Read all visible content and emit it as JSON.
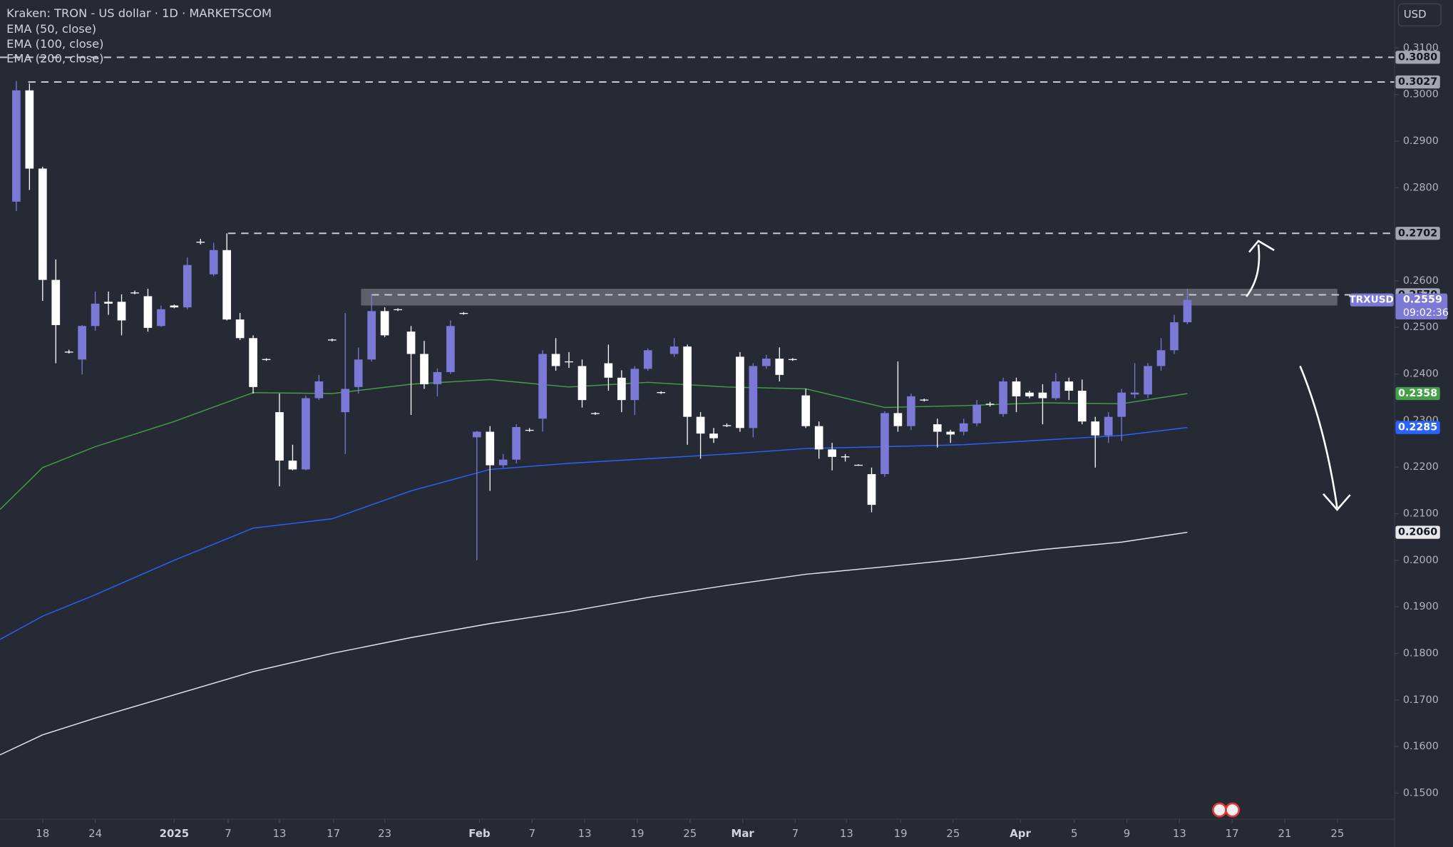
{
  "chart_data": {
    "type": "candlestick",
    "title": "Kraken: TRON - US dollar · 1D · MARKETSCOM",
    "currency": "USD",
    "candles": {
      "name": "TRXUSD",
      "up_color": "#7b78d6",
      "down_color": "#ffffff",
      "open": [
        0.277,
        0.3009,
        0.2841,
        0.2602,
        0.2448,
        0.2431,
        0.2503,
        0.2555,
        0.2555,
        0.2575,
        0.2567,
        0.2503,
        0.2547,
        0.2543,
        0.2684,
        0.2614,
        0.2666,
        0.2517,
        0.2477,
        0.2432,
        0.2318,
        0.2214,
        0.2195,
        0.2348,
        0.2474,
        0.2318,
        0.2372,
        0.2431,
        0.2535,
        0.2539,
        0.2491,
        0.2443,
        0.2378,
        0.2404,
        0.2531,
        0.2264,
        0.2276,
        0.2204,
        0.2216,
        0.228,
        0.2304,
        0.2443,
        0.2427,
        0.2417,
        0.2316,
        0.2423,
        0.2392,
        0.2344,
        0.2411,
        0.2361,
        0.2443,
        0.2459,
        0.2308,
        0.2272,
        0.229,
        0.2437,
        0.2284,
        0.2417,
        0.2433,
        0.2432,
        0.2354,
        0.2288,
        0.2238,
        0.2223,
        0.2205,
        0.2185,
        0.2185,
        0.2316,
        0.2288,
        0.2345,
        0.2292,
        0.2276,
        0.2276,
        0.2294,
        0.2336,
        0.2314,
        0.2384,
        0.236,
        0.236,
        0.2348,
        0.2384,
        0.2364,
        0.2298,
        0.2268,
        0.2308,
        0.2356,
        0.2356,
        0.2417,
        0.2451,
        0.2511
      ],
      "high": [
        0.3029,
        0.3024,
        0.2845,
        0.2646,
        0.2452,
        0.2505,
        0.2577,
        0.2577,
        0.2571,
        0.2579,
        0.2583,
        0.2547,
        0.2549,
        0.265,
        0.269,
        0.2682,
        0.2702,
        0.2531,
        0.2483,
        0.2434,
        0.2358,
        0.2248,
        0.2354,
        0.2398,
        0.2476,
        0.2531,
        0.2457,
        0.2571,
        0.2543,
        0.2541,
        0.2503,
        0.2471,
        0.2412,
        0.2515,
        0.2533,
        0.2278,
        0.2288,
        0.2228,
        0.2292,
        0.2284,
        0.2451,
        0.2477,
        0.2447,
        0.2431,
        0.2318,
        0.2463,
        0.2408,
        0.2417,
        0.2455,
        0.2363,
        0.2477,
        0.2463,
        0.2318,
        0.2284,
        0.2294,
        0.2447,
        0.2423,
        0.2441,
        0.2457,
        0.2434,
        0.2368,
        0.2298,
        0.2252,
        0.2228,
        0.2206,
        0.2199,
        0.232,
        0.2427,
        0.2358,
        0.2347,
        0.2304,
        0.228,
        0.2304,
        0.2344,
        0.234,
        0.2392,
        0.2392,
        0.2364,
        0.2378,
        0.2402,
        0.2392,
        0.2388,
        0.2308,
        0.2318,
        0.2368,
        0.2423,
        0.2423,
        0.2477,
        0.2527,
        0.2583
      ],
      "low": [
        0.275,
        0.2795,
        0.2557,
        0.2423,
        0.2444,
        0.2399,
        0.2493,
        0.2527,
        0.2483,
        0.2571,
        0.2491,
        0.2501,
        0.2541,
        0.2539,
        0.2678,
        0.261,
        0.2515,
        0.2473,
        0.2358,
        0.2428,
        0.2159,
        0.2193,
        0.2193,
        0.2344,
        0.247,
        0.2228,
        0.2358,
        0.2427,
        0.2479,
        0.2535,
        0.2312,
        0.2368,
        0.2352,
        0.24,
        0.2527,
        0.2,
        0.2149,
        0.2199,
        0.2208,
        0.2276,
        0.2276,
        0.2407,
        0.2413,
        0.2328,
        0.2312,
        0.2364,
        0.2318,
        0.2312,
        0.2407,
        0.2357,
        0.2437,
        0.2248,
        0.2218,
        0.2252,
        0.2286,
        0.2276,
        0.2264,
        0.2411,
        0.2384,
        0.2428,
        0.2284,
        0.2218,
        0.2193,
        0.2212,
        0.2203,
        0.2103,
        0.2179,
        0.2276,
        0.228,
        0.2341,
        0.2242,
        0.2252,
        0.2268,
        0.2288,
        0.233,
        0.2308,
        0.2318,
        0.2348,
        0.2292,
        0.2344,
        0.2344,
        0.2292,
        0.2199,
        0.2252,
        0.2256,
        0.2348,
        0.2348,
        0.2407,
        0.2443,
        0.2507
      ],
      "close": [
        0.3009,
        0.2841,
        0.2602,
        0.2505,
        0.2446,
        0.2503,
        0.2551,
        0.2551,
        0.2515,
        0.2573,
        0.2499,
        0.2539,
        0.2543,
        0.2634,
        0.2682,
        0.2666,
        0.2517,
        0.2477,
        0.2372,
        0.243,
        0.2214,
        0.2195,
        0.2348,
        0.2384,
        0.2472,
        0.2368,
        0.2431,
        0.2535,
        0.2483,
        0.2537,
        0.2443,
        0.2378,
        0.2404,
        0.2503,
        0.2529,
        0.2276,
        0.2204,
        0.2216,
        0.2286,
        0.2278,
        0.2443,
        0.2417,
        0.2425,
        0.2344,
        0.2314,
        0.2392,
        0.2344,
        0.2411,
        0.2451,
        0.2359,
        0.2459,
        0.2308,
        0.2272,
        0.2262,
        0.2288,
        0.2284,
        0.2417,
        0.2433,
        0.2398,
        0.243,
        0.2288,
        0.2238,
        0.2222,
        0.2221,
        0.2204,
        0.2119,
        0.2316,
        0.2288,
        0.2352,
        0.2343,
        0.2276,
        0.227,
        0.2294,
        0.2334,
        0.2334,
        0.2384,
        0.2352,
        0.2352,
        0.2348,
        0.2384,
        0.2364,
        0.2298,
        0.2268,
        0.2308,
        0.236,
        0.236,
        0.2417,
        0.2451,
        0.2511,
        0.2559
      ],
      "countdown": "09:02:36"
    },
    "series": [
      {
        "name": "EMA (50, close)",
        "color": "#43a047",
        "x": [
          -1.24,
          2,
          6,
          12,
          18,
          24,
          30,
          36,
          42,
          48,
          54,
          60,
          66,
          72,
          78,
          84,
          89
        ],
        "values": [
          0.2109,
          0.2199,
          0.2244,
          0.2298,
          0.236,
          0.2358,
          0.2378,
          0.2388,
          0.2372,
          0.2382,
          0.2372,
          0.2368,
          0.2328,
          0.2332,
          0.2338,
          0.2336,
          0.2358
        ],
        "value_labels": [
          null,
          null,
          null,
          null,
          null,
          null,
          null,
          null,
          null,
          null,
          null,
          null,
          null,
          null,
          null,
          null,
          "0.2358"
        ],
        "tag_text": "#ffffff"
      },
      {
        "name": "EMA (100, close)",
        "color": "#2962ff",
        "x": [
          -1.24,
          2,
          6,
          12,
          18,
          24,
          30,
          36,
          42,
          48,
          54,
          60,
          66,
          72,
          78,
          84,
          89
        ],
        "values": [
          0.183,
          0.188,
          0.1926,
          0.2,
          0.2069,
          0.2089,
          0.2149,
          0.2195,
          0.2208,
          0.2218,
          0.2228,
          0.224,
          0.2244,
          0.2248,
          0.2258,
          0.2268,
          0.2285
        ],
        "value_labels": [
          null,
          null,
          null,
          null,
          null,
          null,
          null,
          null,
          null,
          null,
          null,
          null,
          null,
          null,
          null,
          null,
          "0.2285"
        ],
        "tag_text": "#ffffff"
      },
      {
        "name": "EMA (200, close)",
        "color": "#e8e8ec",
        "x": [
          -1.24,
          2,
          6,
          12,
          18,
          24,
          30,
          36,
          42,
          48,
          54,
          60,
          66,
          72,
          78,
          84,
          89
        ],
        "values": [
          0.1582,
          0.1625,
          0.1661,
          0.1711,
          0.1761,
          0.18,
          0.1834,
          0.1864,
          0.189,
          0.192,
          0.1946,
          0.197,
          0.1986,
          0.2003,
          0.2023,
          0.2039,
          0.206
        ],
        "value_labels": [
          null,
          null,
          null,
          null,
          null,
          null,
          null,
          null,
          null,
          null,
          null,
          null,
          null,
          null,
          null,
          null,
          "0.2060"
        ],
        "tag_text": "#131722"
      }
    ],
    "levels": [
      {
        "value": 0.308,
        "label": "0.3080",
        "x0": -1.24
      },
      {
        "value": 0.3027,
        "label": "0.3027",
        "x0": 0.9
      },
      {
        "value": 0.2702,
        "label": "0.2702",
        "x0": 16.1
      },
      {
        "value": 0.257,
        "label": "0.2570",
        "x0": 27
      }
    ],
    "zone": {
      "top": 0.2583,
      "bottom": 0.2547,
      "x0": 26.2,
      "x1": 100.4
    },
    "xlim": [
      -1.24,
      104.75
    ],
    "ylim": [
      0.1444,
      0.3203
    ],
    "xticks": [
      {
        "value": 2,
        "label": "18"
      },
      {
        "value": 6,
        "label": "24"
      },
      {
        "value": 12,
        "label": "2025"
      },
      {
        "value": 16.1,
        "label": "7"
      },
      {
        "value": 20,
        "label": "13"
      },
      {
        "value": 24.1,
        "label": "17"
      },
      {
        "value": 28,
        "label": "23"
      },
      {
        "value": 35.2,
        "label": "Feb"
      },
      {
        "value": 39.2,
        "label": "7"
      },
      {
        "value": 43.2,
        "label": "13"
      },
      {
        "value": 47.2,
        "label": "19"
      },
      {
        "value": 51.2,
        "label": "25"
      },
      {
        "value": 55.2,
        "label": "Mar"
      },
      {
        "value": 59.2,
        "label": "7"
      },
      {
        "value": 63.1,
        "label": "13"
      },
      {
        "value": 67.2,
        "label": "19"
      },
      {
        "value": 71.2,
        "label": "25"
      },
      {
        "value": 76.3,
        "label": "Apr"
      },
      {
        "value": 80.4,
        "label": "5"
      },
      {
        "value": 84.4,
        "label": "9"
      },
      {
        "value": 88.4,
        "label": "13"
      },
      {
        "value": 92.4,
        "label": "17"
      },
      {
        "value": 96.4,
        "label": "21"
      },
      {
        "value": 100.4,
        "label": "25"
      }
    ],
    "yticks": [
      {
        "value": 0.31,
        "label": "0.3100"
      },
      {
        "value": 0.3,
        "label": "0.3000"
      },
      {
        "value": 0.29,
        "label": "0.2900"
      },
      {
        "value": 0.28,
        "label": "0.2800"
      },
      {
        "value": 0.27,
        "label": "0.2700"
      },
      {
        "value": 0.26,
        "label": "0.2600"
      },
      {
        "value": 0.25,
        "label": "0.2500"
      },
      {
        "value": 0.24,
        "label": "0.2400"
      },
      {
        "value": 0.23,
        "label": "0.2300"
      },
      {
        "value": 0.22,
        "label": "0.2200"
      },
      {
        "value": 0.21,
        "label": "0.2100"
      },
      {
        "value": 0.2,
        "label": "0.2000"
      },
      {
        "value": 0.19,
        "label": "0.1900"
      },
      {
        "value": 0.18,
        "label": "0.1800"
      },
      {
        "value": 0.17,
        "label": "0.1700"
      },
      {
        "value": 0.16,
        "label": "0.1600"
      },
      {
        "value": 0.15,
        "label": "0.1500"
      }
    ],
    "grid": false
  }
}
